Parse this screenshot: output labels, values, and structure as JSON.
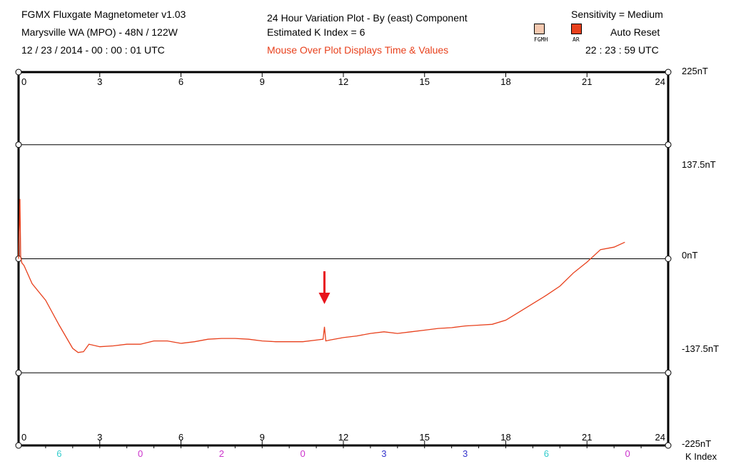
{
  "header": {
    "app_title": "FGMX Fluxgate Magnetometer  v1.03",
    "location": "Marysville WA (MPO) - 48N / 122W",
    "start_time": "12 / 23 / 2014  -  00 : 00 : 01  UTC",
    "plot_title": "24  Hour  Variation  Plot  -  By (east)  Component",
    "k_index_text": "Estimated K Index = 6",
    "mouse_hint": "Mouse Over Plot Displays Time & Values",
    "sensitivity": "Sensitivity = Medium",
    "auto_reset": "Auto Reset",
    "current_time": "22 : 23 : 59  UTC",
    "swatch_fgmh_label": "FGMH",
    "swatch_ar_label": "AR",
    "swatch_fgmh_color": "#f5c9b0",
    "swatch_ar_color": "#e8401c"
  },
  "chart_data": {
    "type": "line",
    "title": "24  Hour  Variation  Plot  -  By (east)  Component",
    "xlabel": "",
    "ylabel": "",
    "xlim": [
      0,
      24
    ],
    "ylim": [
      -225,
      225
    ],
    "x_ticks": [
      "0",
      "3",
      "6",
      "9",
      "12",
      "15",
      "18",
      "21",
      "24"
    ],
    "y_tick_labels": [
      "225nT",
      "137.5nT",
      "0nT",
      "-137.5nT",
      "-225nT"
    ],
    "y_tick_values": [
      225,
      137.5,
      0,
      -137.5,
      -225
    ],
    "grid": true,
    "line_color": "#e8401c",
    "series": [
      {
        "x": [
          0.0,
          0.05,
          0.08,
          0.12,
          0.2,
          0.5,
          1.0,
          1.5,
          2.0,
          2.2,
          2.4,
          2.6,
          3.0,
          3.5,
          4.0,
          4.5,
          5.0,
          5.5,
          6.0,
          6.5,
          7.0,
          7.5,
          8.0,
          8.5,
          9.0,
          9.5,
          10.0,
          10.5,
          11.0,
          11.25,
          11.3,
          11.35,
          11.5,
          12.0,
          12.5,
          13.0,
          13.5,
          14.0,
          14.5,
          15.0,
          15.5,
          16.0,
          16.5,
          17.0,
          17.5,
          18.0,
          18.5,
          19.0,
          19.5,
          20.0,
          20.5,
          21.0,
          21.5,
          22.0,
          22.4
        ],
        "y": [
          0,
          72,
          2,
          -5,
          -8,
          -30,
          -50,
          -80,
          -108,
          -113,
          -112,
          -103,
          -106,
          -105,
          -103,
          -103,
          -99,
          -99,
          -102,
          -100,
          -97,
          -96,
          -96,
          -97,
          -99,
          -100,
          -100,
          -100,
          -98,
          -97,
          -82,
          -99,
          -98,
          -95,
          -93,
          -90,
          -88,
          -90,
          -88,
          -86,
          -84,
          -83,
          -81,
          -80,
          -79,
          -74,
          -64,
          -54,
          -44,
          -33,
          -17,
          -4,
          11,
          14,
          20
        ]
      }
    ],
    "k_index_values": [
      "6",
      "0",
      "2",
      "0",
      "3",
      "3",
      "6",
      "0"
    ],
    "k_index_colors": [
      "#33cccc",
      "#cc33cc",
      "#cc33cc",
      "#cc33cc",
      "#3333cc",
      "#3333cc",
      "#33cccc",
      "#cc33cc"
    ],
    "k_index_label": "K Index",
    "annotation": "red arrow marker",
    "annotation_x": 11.3,
    "annotation_color": "#e8141c"
  }
}
